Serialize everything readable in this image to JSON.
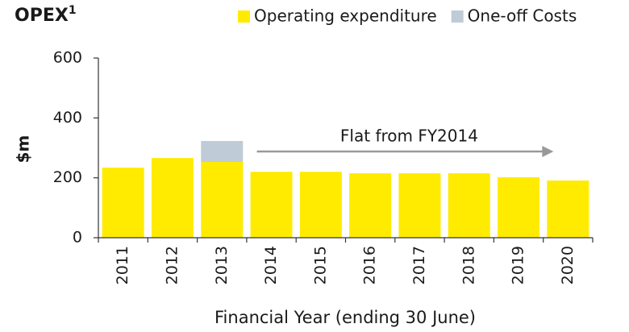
{
  "chart_data": {
    "type": "stacked_bar",
    "title": "OPEX",
    "title_footnote": "1",
    "categories": [
      "2011",
      "2012",
      "2013",
      "2014",
      "2015",
      "2016",
      "2017",
      "2018",
      "2019",
      "2020"
    ],
    "series": [
      {
        "name": "Operating expenditure",
        "color": "#ffeb00",
        "values": [
          234,
          266,
          253,
          220,
          220,
          215,
          215,
          215,
          202,
          191
        ]
      },
      {
        "name": "One-off Costs",
        "color": "#bfcbd6",
        "values": [
          null,
          null,
          70,
          null,
          null,
          null,
          null,
          null,
          null,
          null
        ]
      }
    ],
    "ylim": [
      0,
      600
    ],
    "yticks": [
      0,
      200,
      400,
      600
    ],
    "y_label": "$m",
    "x_label": "Financial Year (ending 30 June)",
    "annotation": {
      "text": "Flat from FY2014",
      "from": "2014",
      "to": "2020"
    }
  }
}
